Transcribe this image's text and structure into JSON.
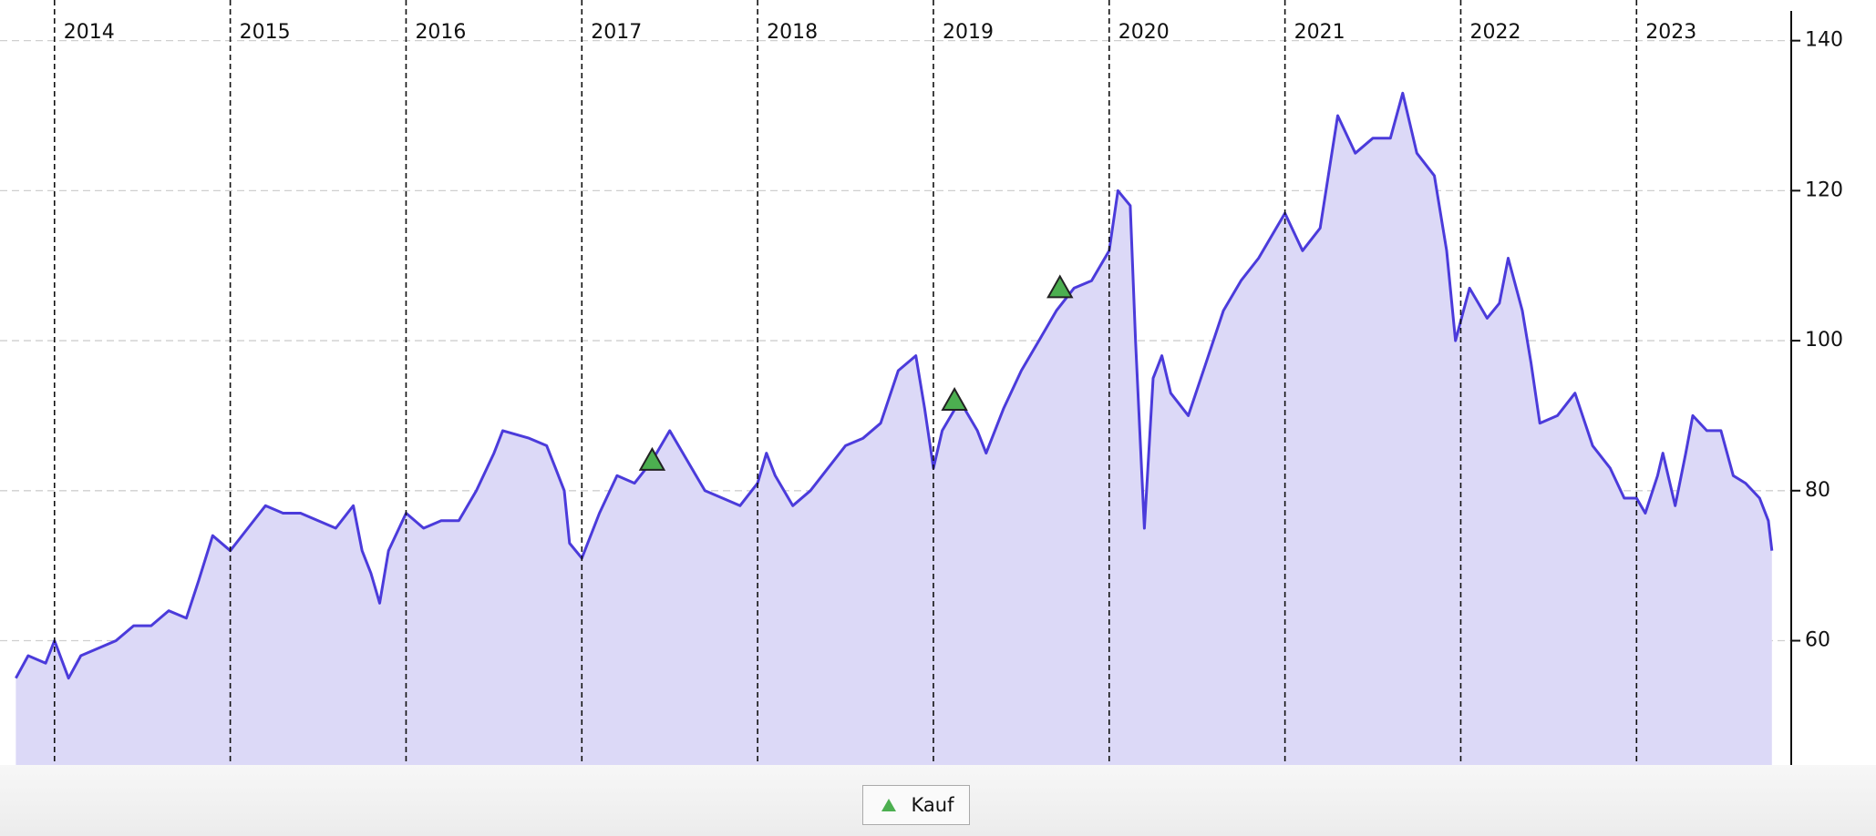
{
  "chart_data": {
    "type": "area",
    "color": "#4b3bdb",
    "fill": "#dcd9f7",
    "grid": true,
    "xlim": [
      2013.69,
      2023.88
    ],
    "xticks": [
      2014,
      2015,
      2016,
      2017,
      2018,
      2019,
      2020,
      2021,
      2022,
      2023
    ],
    "ylim": [
      43.43,
      145.42
    ],
    "yticks": [
      60,
      80,
      100,
      120,
      140
    ],
    "x": [
      2013.78,
      2013.85,
      2013.95,
      2014.0,
      2014.08,
      2014.15,
      2014.25,
      2014.35,
      2014.45,
      2014.55,
      2014.65,
      2014.75,
      2014.82,
      2014.9,
      2015.0,
      2015.1,
      2015.2,
      2015.3,
      2015.4,
      2015.5,
      2015.6,
      2015.7,
      2015.75,
      2015.8,
      2015.85,
      2015.9,
      2016.0,
      2016.1,
      2016.2,
      2016.3,
      2016.4,
      2016.5,
      2016.55,
      2016.7,
      2016.8,
      2016.85,
      2016.9,
      2016.93,
      2017.0,
      2017.1,
      2017.2,
      2017.3,
      2017.4,
      2017.5,
      2017.6,
      2017.7,
      2017.8,
      2017.9,
      2018.0,
      2018.05,
      2018.1,
      2018.2,
      2018.3,
      2018.4,
      2018.5,
      2018.6,
      2018.7,
      2018.8,
      2018.9,
      2018.95,
      2019.0,
      2019.05,
      2019.15,
      2019.25,
      2019.3,
      2019.4,
      2019.5,
      2019.6,
      2019.7,
      2019.8,
      2019.9,
      2020.0,
      2020.05,
      2020.12,
      2020.15,
      2020.2,
      2020.25,
      2020.3,
      2020.35,
      2020.45,
      2020.55,
      2020.65,
      2020.75,
      2020.85,
      2020.95,
      2021.0,
      2021.1,
      2021.2,
      2021.3,
      2021.4,
      2021.5,
      2021.6,
      2021.67,
      2021.75,
      2021.85,
      2021.92,
      2021.97,
      2022.05,
      2022.15,
      2022.22,
      2022.27,
      2022.35,
      2022.4,
      2022.45,
      2022.55,
      2022.65,
      2022.75,
      2022.85,
      2022.93,
      2023.0,
      2023.05,
      2023.12,
      2023.15,
      2023.22,
      2023.28,
      2023.32,
      2023.4,
      2023.48,
      2023.55,
      2023.62,
      2023.7,
      2023.75,
      2023.77
    ],
    "values": [
      55,
      58,
      57,
      60,
      55,
      58,
      59,
      60,
      62,
      62,
      64,
      63,
      68,
      74,
      72,
      75,
      78,
      77,
      77,
      76,
      75,
      78,
      72,
      69,
      65,
      72,
      77,
      75,
      76,
      76,
      80,
      85,
      88,
      87,
      86,
      83,
      80,
      73,
      71,
      77,
      82,
      81,
      84,
      88,
      84,
      80,
      79,
      78,
      81,
      85,
      82,
      78,
      80,
      83,
      86,
      87,
      89,
      96,
      98,
      91,
      83,
      88,
      92,
      88,
      85,
      91,
      96,
      100,
      104,
      107,
      108,
      112,
      120,
      118,
      100,
      75,
      95,
      98,
      93,
      90,
      97,
      104,
      108,
      111,
      115,
      117,
      112,
      115,
      130,
      125,
      127,
      127,
      133,
      125,
      122,
      112,
      100,
      107,
      103,
      105,
      111,
      104,
      97,
      89,
      90,
      93,
      86,
      83,
      79,
      79,
      77,
      82,
      85,
      78,
      85,
      90,
      88,
      88,
      82,
      81,
      79,
      76,
      72
    ],
    "markers": {
      "name": "Kauf",
      "color": "#4caf50",
      "x": [
        2017.4,
        2019.12,
        2019.72
      ],
      "values": [
        84,
        92,
        107
      ]
    }
  }
}
